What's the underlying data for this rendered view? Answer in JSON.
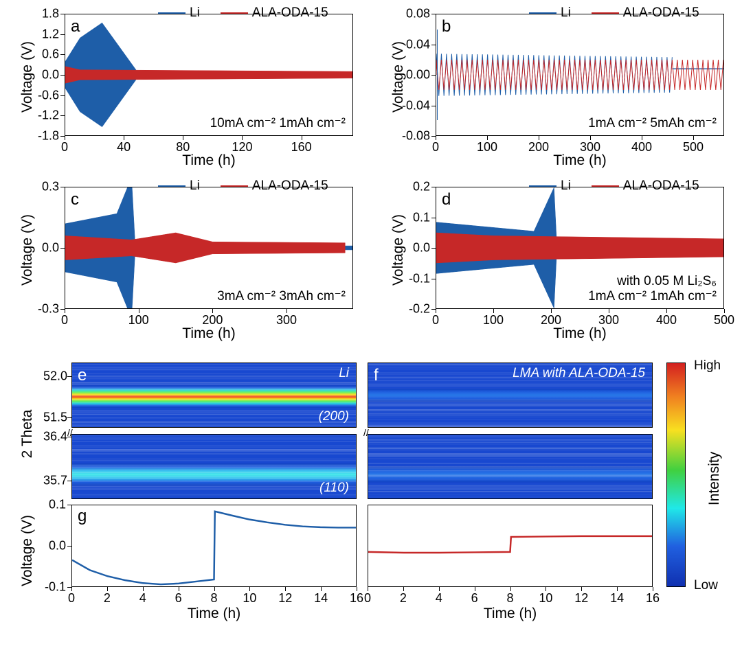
{
  "colors": {
    "li": "#1e5ea8",
    "ala": "#c62828",
    "axis": "#000000",
    "bg": "#ffffff"
  },
  "legend": {
    "li": "Li",
    "ala": "ALA-ODA-15"
  },
  "panel_a": {
    "letter": "a",
    "xlim": [
      0,
      195
    ],
    "ylim": [
      -1.8,
      1.8
    ],
    "xticks": [
      0,
      40,
      80,
      120,
      160
    ],
    "yticks": [
      -1.8,
      -1.2,
      -0.6,
      0.0,
      0.6,
      1.2,
      1.8
    ],
    "xlabel": "Time (h)",
    "ylabel": "Voltage (V)",
    "annot": "10mA cm⁻² 1mAh cm⁻²"
  },
  "panel_b": {
    "letter": "b",
    "xlim": [
      0,
      560
    ],
    "ylim": [
      -0.08,
      0.08
    ],
    "xticks": [
      0,
      100,
      200,
      300,
      400,
      500
    ],
    "yticks": [
      -0.08,
      -0.04,
      0.0,
      0.04,
      0.08
    ],
    "xlabel": "Time (h)",
    "ylabel": "Voltage (V)",
    "annot": "1mA cm⁻² 5mAh cm⁻²"
  },
  "panel_c": {
    "letter": "c",
    "xlim": [
      0,
      390
    ],
    "ylim": [
      -0.3,
      0.3
    ],
    "xticks": [
      0,
      100,
      200,
      300
    ],
    "yticks": [
      -0.3,
      0.0,
      0.3
    ],
    "xlabel": "Time (h)",
    "ylabel": "Voltage (V)",
    "annot": "3mA cm⁻² 3mAh cm⁻²"
  },
  "panel_d": {
    "letter": "d",
    "xlim": [
      0,
      500
    ],
    "ylim": [
      -0.2,
      0.2
    ],
    "xticks": [
      0,
      100,
      200,
      300,
      400,
      500
    ],
    "yticks": [
      -0.2,
      -0.1,
      0.0,
      0.1,
      0.2
    ],
    "xlabel": "Time (h)",
    "ylabel": "Voltage (V)",
    "annot1": "with 0.05 M Li₂S₆",
    "annot2": "1mA cm⁻² 1mAh cm⁻²"
  },
  "panel_ef": {
    "e_letter": "e",
    "f_letter": "f",
    "e_title": "Li",
    "f_title": "LMA with ALA-ODA-15",
    "ylabel": "2 Theta",
    "upper_yticks": [
      51.5,
      52.0
    ],
    "lower_yticks": [
      35.7,
      36.4
    ],
    "peak_200": "(200)",
    "peak_110": "(110)"
  },
  "panel_g": {
    "letter": "g",
    "xlim": [
      0,
      16
    ],
    "ylim": [
      -0.1,
      0.1
    ],
    "xticks": [
      0,
      2,
      4,
      6,
      8,
      10,
      12,
      14,
      16
    ],
    "yticks": [
      -0.1,
      0.0,
      0.1
    ],
    "xlabel": "Time (h)",
    "ylabel": "Voltage (V)",
    "li_curve": [
      [
        0,
        -0.035
      ],
      [
        1,
        -0.06
      ],
      [
        2,
        -0.075
      ],
      [
        3,
        -0.085
      ],
      [
        4,
        -0.092
      ],
      [
        5,
        -0.095
      ],
      [
        6,
        -0.093
      ],
      [
        7,
        -0.088
      ],
      [
        8,
        -0.083
      ],
      [
        8.05,
        0.085
      ],
      [
        9,
        0.075
      ],
      [
        10,
        0.065
      ],
      [
        11,
        0.058
      ],
      [
        12,
        0.052
      ],
      [
        13,
        0.048
      ],
      [
        14,
        0.046
      ],
      [
        15,
        0.045
      ],
      [
        16,
        0.045
      ]
    ],
    "ala_curve": [
      [
        0,
        -0.015
      ],
      [
        2,
        -0.017
      ],
      [
        4,
        -0.017
      ],
      [
        6,
        -0.016
      ],
      [
        8,
        -0.015
      ],
      [
        8.05,
        0.022
      ],
      [
        10,
        0.023
      ],
      [
        12,
        0.024
      ],
      [
        14,
        0.024
      ],
      [
        16,
        0.024
      ]
    ]
  },
  "colorbar": {
    "high": "High",
    "low": "Low",
    "label": "Intensity",
    "stops": [
      {
        "p": 0,
        "c": "#d32020"
      },
      {
        "p": 15,
        "c": "#f08020"
      },
      {
        "p": 30,
        "c": "#f8e020"
      },
      {
        "p": 48,
        "c": "#40d040"
      },
      {
        "p": 65,
        "c": "#20e8e8"
      },
      {
        "p": 82,
        "c": "#2060e0"
      },
      {
        "p": 100,
        "c": "#1030b0"
      }
    ]
  }
}
